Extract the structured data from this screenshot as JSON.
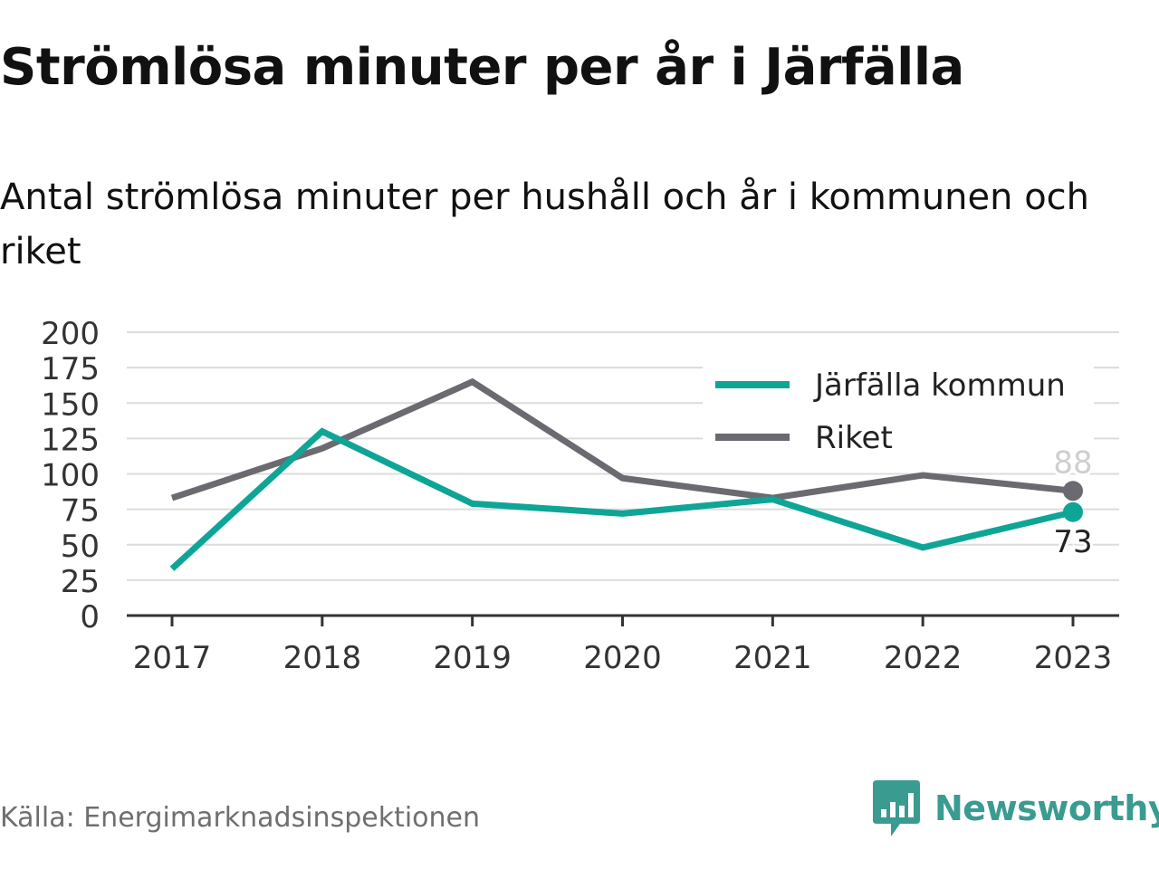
{
  "title": "Strömlösa minuter per år i Järfälla",
  "subtitle": "Antal strömlösa minuter per hushåll och år i kommunen och riket",
  "source": "Källa: Energimarknadsinspektionen",
  "brand": {
    "name": "Newsworthy",
    "icon": "newsworthy-logo-icon",
    "color": "#3a9b91"
  },
  "chart_data": {
    "type": "line",
    "x": [
      "2017",
      "2018",
      "2019",
      "2020",
      "2021",
      "2022",
      "2023"
    ],
    "series": [
      {
        "name": "Järfälla kommun",
        "color": "#0ea597",
        "values": [
          33,
          130,
          79,
          72,
          82,
          48,
          73
        ],
        "end_label": "73"
      },
      {
        "name": "Riket",
        "color": "#6b6a71",
        "values": [
          83,
          118,
          165,
          97,
          83,
          99,
          88
        ],
        "end_label": "88"
      }
    ],
    "y_ticks": [
      "0",
      "25",
      "50",
      "75",
      "100",
      "125",
      "150",
      "175",
      "200"
    ],
    "ylim": [
      0,
      200
    ],
    "grid": true,
    "legend": "top-right",
    "xlabel": "",
    "ylabel": ""
  }
}
